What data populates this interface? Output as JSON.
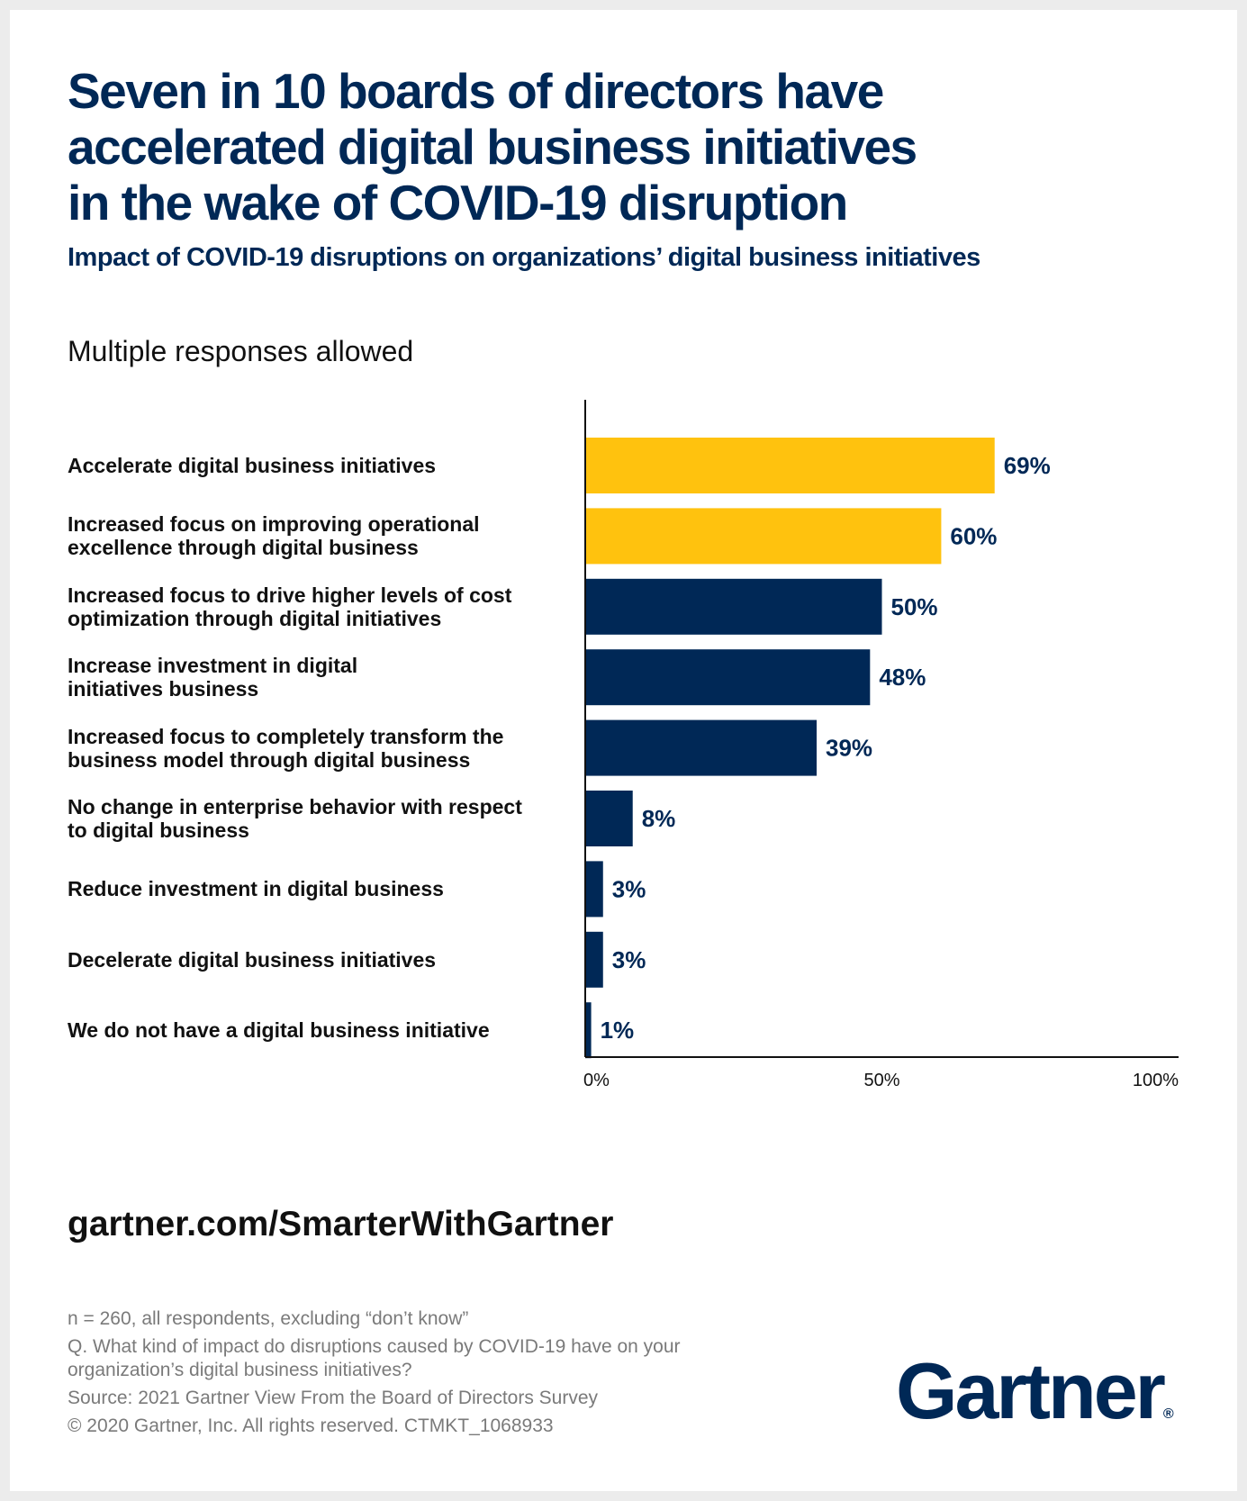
{
  "title": "Seven in 10 boards of directors have accelerated digital business initiatives in the wake of COVID-19 disruption",
  "title_lines": [
    "Seven in 10 boards of directors have",
    "accelerated digital business initiatives",
    "in the wake of COVID-19 disruption"
  ],
  "subtitle": "Impact of COVID-19 disruptions on organizations’ digital business initiatives",
  "note": "Multiple responses allowed",
  "chart_data": {
    "type": "bar",
    "orientation": "horizontal",
    "title": "Impact of COVID-19 disruptions on organizations’ digital business initiatives",
    "categories": [
      "Accelerate digital business initiatives",
      "Increased focus on improving operational excellence through digital business",
      "Increased focus to drive higher levels of cost optimization through digital initiatives",
      "Increase investment in digital initiatives business",
      "Increased focus to completely transform the business model through digital business",
      "No change in enterprise behavior with respect to digital business",
      "Reduce investment in digital business",
      "Decelerate digital business initiatives",
      "We do not have a digital business initiative"
    ],
    "category_lines": [
      [
        "Accelerate digital business initiatives"
      ],
      [
        "Increased focus on improving operational",
        "excellence through digital business"
      ],
      [
        "Increased focus to drive higher levels of cost",
        "optimization through digital initiatives"
      ],
      [
        "Increase investment in digital",
        "initiatives business"
      ],
      [
        "Increased focus to completely transform the",
        "business model through digital business"
      ],
      [
        "No change in enterprise behavior with respect",
        "to digital business"
      ],
      [
        "Reduce investment in digital business"
      ],
      [
        "Decelerate digital business initiatives"
      ],
      [
        "We do not have a digital business initiative"
      ]
    ],
    "values": [
      69,
      60,
      50,
      48,
      39,
      8,
      3,
      3,
      1
    ],
    "data_labels": [
      "69%",
      "60%",
      "50%",
      "48%",
      "39%",
      "8%",
      "3%",
      "3%",
      "1%"
    ],
    "xlim": [
      0,
      100
    ],
    "xticks": [
      0,
      50,
      100
    ],
    "xtick_labels": [
      "0%",
      "50%",
      "100%"
    ],
    "grid": false,
    "highlight_count": 2,
    "colors": {
      "highlight": "#FFC20E",
      "default": "#002856"
    }
  },
  "url": "gartner.com/SmarterWithGartner",
  "footnotes": [
    "n = 260, all respondents, excluding “don’t know”",
    "Q. What kind of impact do disruptions caused by COVID-19 have on your",
    "organization’s digital business initiatives?",
    "Source: 2021 Gartner View From the Board of Directors Survey",
    "© 2020 Gartner, Inc. All rights reserved. CTMKT_1068933"
  ],
  "logo": "Gartner"
}
